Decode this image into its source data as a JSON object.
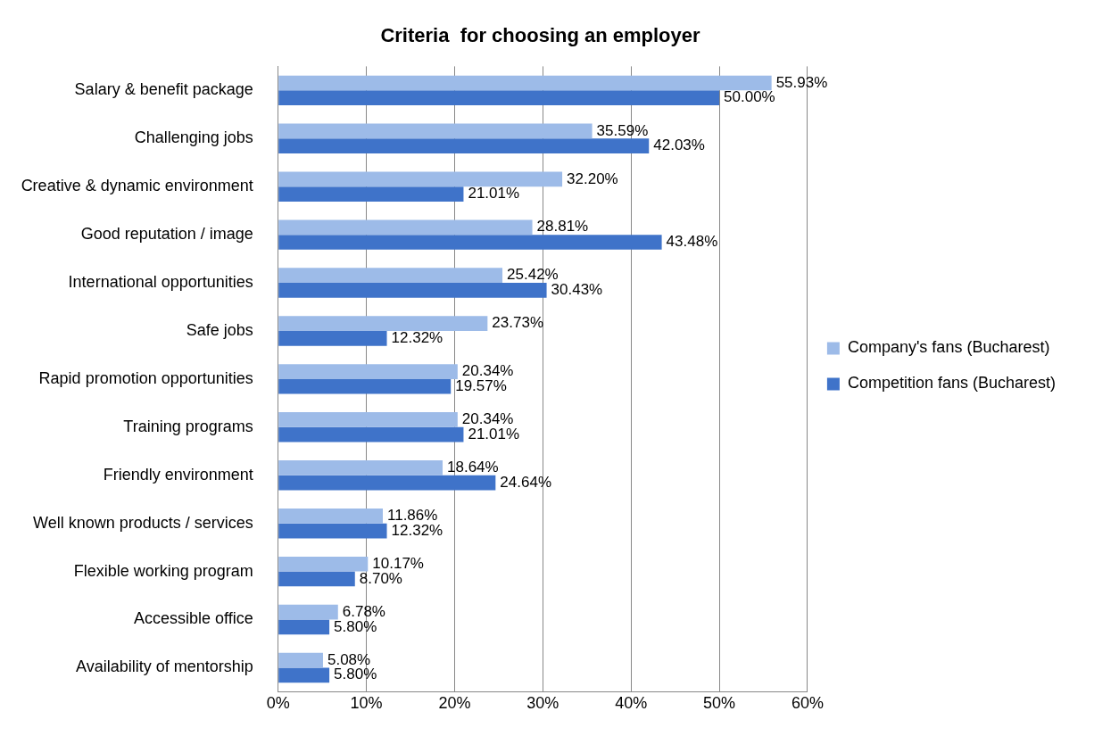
{
  "chart_data": {
    "type": "bar",
    "orientation": "horizontal",
    "title": "Criteria  for choosing an employer",
    "categories": [
      "Salary & benefit package",
      "Challenging jobs",
      "Creative & dynamic environment",
      "Good reputation / image",
      "International opportunities",
      "Safe jobs",
      "Rapid promotion opportunities",
      "Training programs",
      "Friendly environment",
      "Well known products / services",
      "Flexible working program",
      "Accessible office",
      "Availability of mentorship"
    ],
    "series": [
      {
        "name": "Company's fans (Bucharest)",
        "color": "#9dbbe8",
        "values": [
          55.93,
          35.59,
          32.2,
          28.81,
          25.42,
          23.73,
          20.34,
          20.34,
          18.64,
          11.86,
          10.17,
          6.78,
          5.08
        ],
        "value_labels": [
          "55.93%",
          "35.59%",
          "32.20%",
          "28.81%",
          "25.42%",
          "23.73%",
          "20.34%",
          "20.34%",
          "18.64%",
          "11.86%",
          "10.17%",
          "6.78%",
          "5.08%"
        ]
      },
      {
        "name": "Competition fans (Bucharest)",
        "color": "#3f73c9",
        "values": [
          50,
          42.03,
          21.01,
          43.48,
          30.43,
          12.32,
          19.57,
          21.01,
          24.64,
          12.32,
          8.7,
          5.8,
          5.8
        ],
        "value_labels": [
          "50.00%",
          "42.03%",
          "21.01%",
          "43.48%",
          "30.43%",
          "12.32%",
          "19.57%",
          "21.01%",
          "24.64%",
          "12.32%",
          "8.70%",
          "5.80%",
          "5.80%"
        ]
      }
    ],
    "xlim": [
      0,
      60
    ],
    "xticks": [
      {
        "value": 0,
        "label": "0%"
      },
      {
        "value": 10,
        "label": "10%"
      },
      {
        "value": 20,
        "label": "20%"
      },
      {
        "value": 30,
        "label": "30%"
      },
      {
        "value": 40,
        "label": "40%"
      },
      {
        "value": 50,
        "label": "50%"
      },
      {
        "value": 60,
        "label": "60%"
      }
    ],
    "grid": "x",
    "legend": "right"
  }
}
